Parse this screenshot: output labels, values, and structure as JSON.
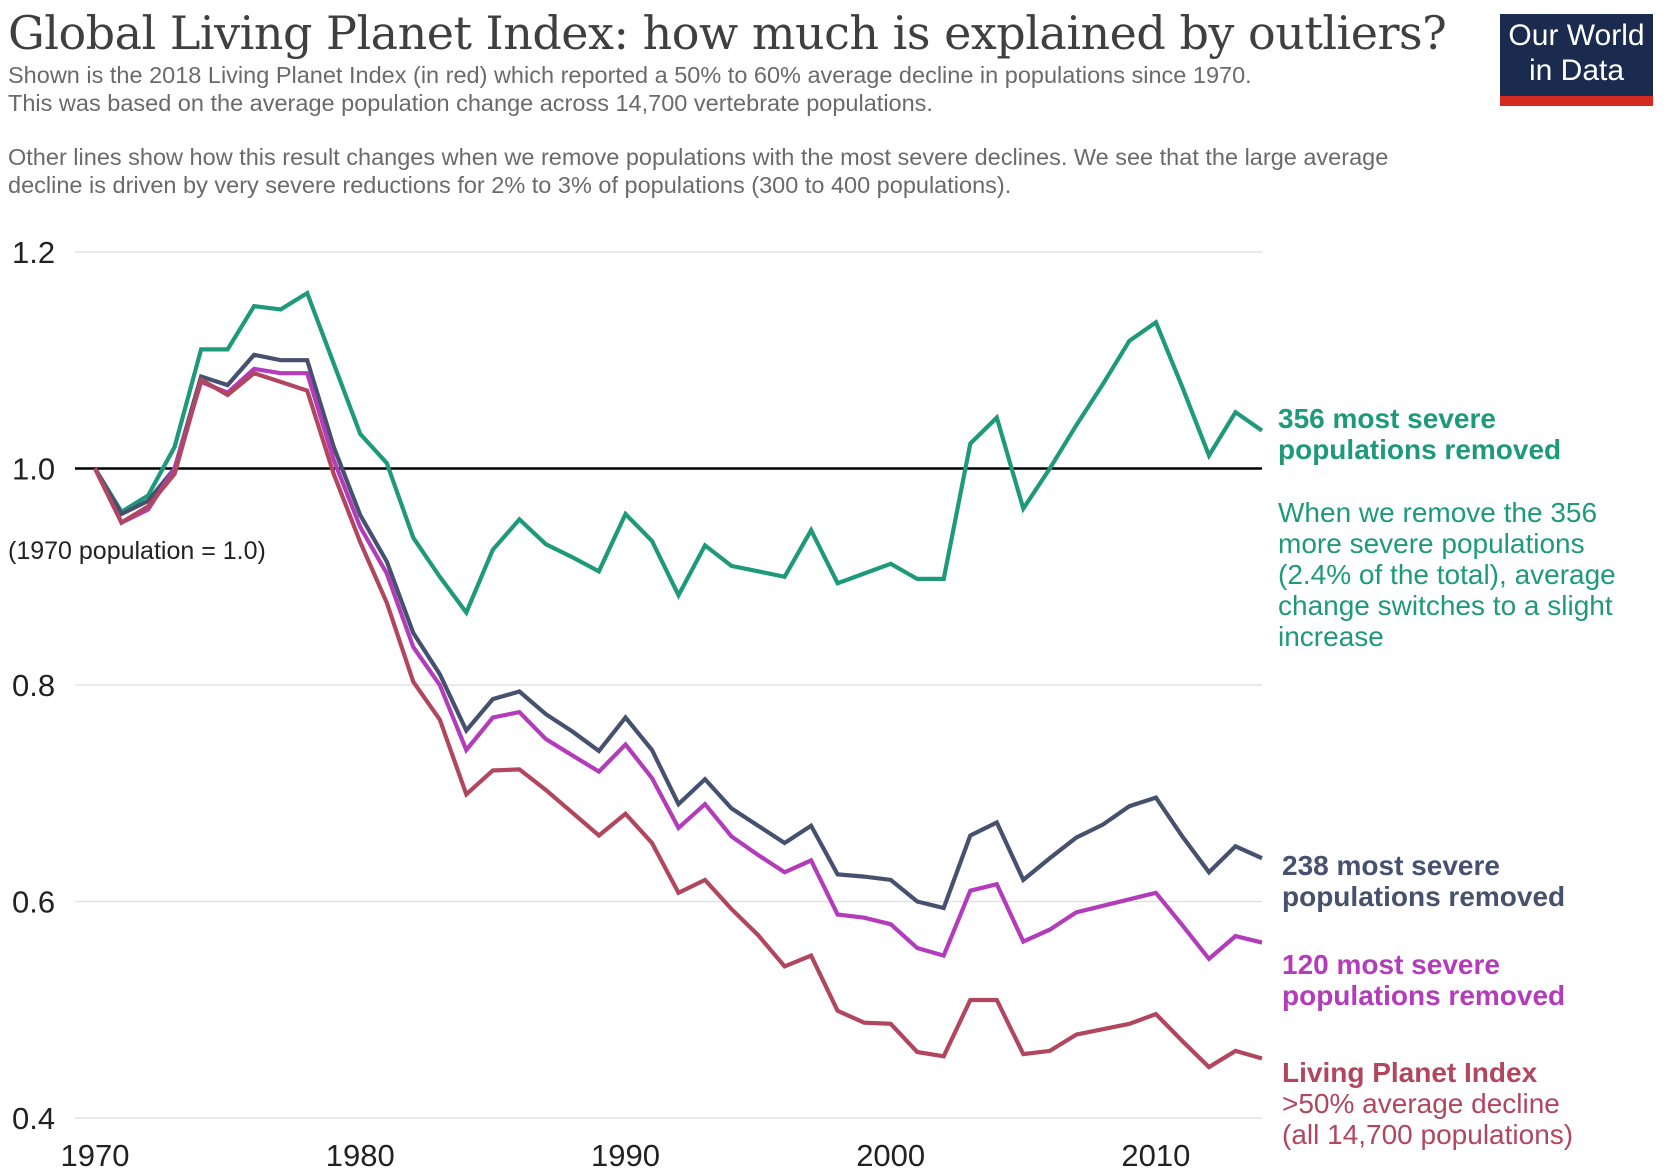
{
  "header": {
    "title": "Global Living Planet Index: how much is explained by outliers?",
    "subtitle_lines": [
      "Shown is the 2018 Living Planet Index (in red) which reported a 50% to 60% average decline in populations since 1970.",
      "This was based on the average population change across 14,700 vertebrate populations.",
      "Other lines show how this result changes when we remove populations with the most severe declines. We see that the large average",
      "decline is driven by very severe reductions for 2% to 3% of populations (300 to 400 populations)."
    ],
    "logo_lines": [
      "Our World",
      "in Data"
    ]
  },
  "colors": {
    "green": "#1e9a7b",
    "navy": "#46516f",
    "magenta": "#b23cb9",
    "red": "#b1465f",
    "grid": "#dddddd",
    "baseline": "#000000",
    "tick_text": "#222222"
  },
  "baseline_note": "(1970 population = 1.0)",
  "chart_data": {
    "type": "line",
    "xlim": [
      1970,
      2014
    ],
    "ylim": [
      0.4,
      1.2
    ],
    "x_ticks": [
      1970,
      1980,
      1990,
      2000,
      2010
    ],
    "y_ticks": [
      0.4,
      0.6,
      0.8,
      1.0,
      1.2
    ],
    "y_tick_labels": [
      "0.4",
      "0.6",
      "0.8",
      "1.0",
      "1.2"
    ],
    "reference_line": 1.0,
    "grid": "horizontal",
    "x": [
      1970,
      1971,
      1972,
      1973,
      1974,
      1975,
      1976,
      1977,
      1978,
      1979,
      1980,
      1981,
      1982,
      1983,
      1984,
      1985,
      1986,
      1987,
      1988,
      1989,
      1990,
      1991,
      1992,
      1993,
      1994,
      1995,
      1996,
      1997,
      1998,
      1999,
      2000,
      2001,
      2002,
      2003,
      2004,
      2005,
      2006,
      2007,
      2008,
      2009,
      2010,
      2011,
      2012,
      2013,
      2014
    ],
    "series": [
      {
        "key": "green",
        "label_lines": [
          "356 most severe",
          "populations removed"
        ],
        "note_lines": [
          "When we remove the 356",
          "more severe populations",
          "(2.4% of the total), average",
          "change switches to a slight",
          "increase"
        ],
        "values": [
          1.0,
          0.96,
          0.975,
          1.02,
          1.11,
          1.11,
          1.15,
          1.147,
          1.162,
          1.097,
          1.032,
          1.005,
          0.936,
          0.9,
          0.867,
          0.925,
          0.953,
          0.93,
          0.918,
          0.905,
          0.958,
          0.933,
          0.883,
          0.929,
          0.91,
          0.905,
          0.9,
          0.943,
          0.894,
          0.903,
          0.912,
          0.898,
          0.898,
          1.023,
          1.047,
          0.963,
          1.0,
          1.04,
          1.078,
          1.118,
          1.135,
          1.075,
          1.012,
          1.052,
          1.035
        ]
      },
      {
        "key": "navy",
        "label_lines": [
          "238 most severe",
          "populations removed"
        ],
        "values": [
          1.0,
          0.958,
          0.97,
          1.0,
          1.085,
          1.077,
          1.105,
          1.1,
          1.1,
          1.02,
          0.957,
          0.914,
          0.848,
          0.81,
          0.758,
          0.787,
          0.794,
          0.773,
          0.757,
          0.739,
          0.77,
          0.74,
          0.69,
          0.713,
          0.686,
          0.67,
          0.654,
          0.67,
          0.625,
          0.623,
          0.62,
          0.6,
          0.594,
          0.661,
          0.673,
          0.62,
          0.64,
          0.659,
          0.671,
          0.688,
          0.696,
          0.66,
          0.627,
          0.651,
          0.64
        ]
      },
      {
        "key": "magenta",
        "label_lines": [
          "120 most severe",
          "populations removed"
        ],
        "values": [
          1.0,
          0.95,
          0.962,
          1.0,
          1.08,
          1.07,
          1.092,
          1.088,
          1.088,
          1.008,
          0.946,
          0.903,
          0.835,
          0.8,
          0.74,
          0.77,
          0.775,
          0.75,
          0.735,
          0.72,
          0.745,
          0.714,
          0.668,
          0.69,
          0.66,
          0.643,
          0.627,
          0.638,
          0.588,
          0.585,
          0.579,
          0.557,
          0.55,
          0.61,
          0.616,
          0.563,
          0.574,
          0.59,
          0.596,
          0.602,
          0.608,
          0.578,
          0.547,
          0.568,
          0.562
        ]
      },
      {
        "key": "red",
        "label_lines": [
          "Living Planet Index"
        ],
        "note_lines": [
          ">50% average decline",
          "(all 14,700 populations)"
        ],
        "values": [
          1.0,
          0.95,
          0.965,
          0.995,
          1.082,
          1.068,
          1.088,
          1.08,
          1.072,
          0.995,
          0.932,
          0.876,
          0.803,
          0.768,
          0.699,
          0.721,
          0.722,
          0.703,
          0.682,
          0.661,
          0.681,
          0.654,
          0.608,
          0.62,
          0.593,
          0.569,
          0.54,
          0.55,
          0.499,
          0.488,
          0.487,
          0.461,
          0.457,
          0.509,
          0.509,
          0.459,
          0.462,
          0.477,
          0.482,
          0.487,
          0.496,
          0.471,
          0.447,
          0.462,
          0.455
        ]
      }
    ]
  }
}
